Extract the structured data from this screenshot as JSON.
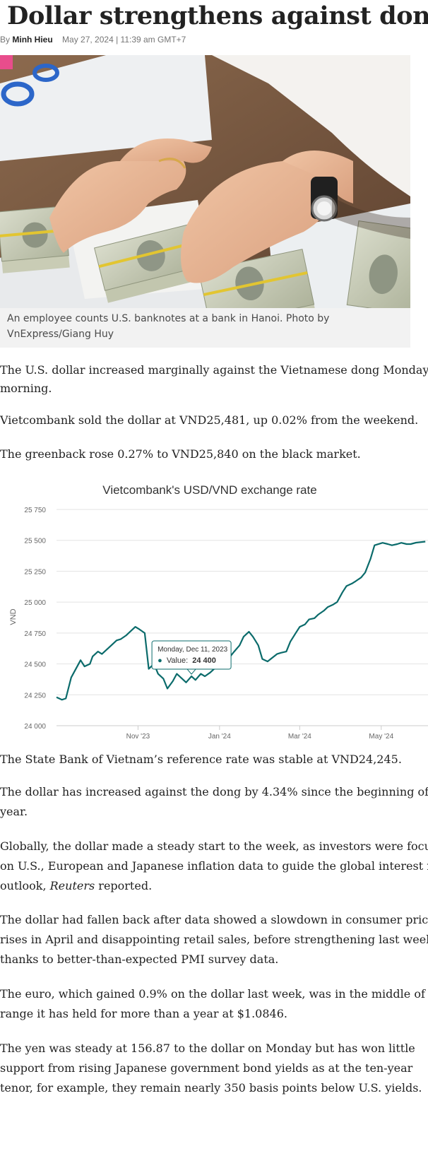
{
  "article": {
    "title": "Dollar strengthens against dong",
    "byline_prefix": "By",
    "author": "Minh Hieu",
    "date": "May 27, 2024 | 11:39 am GMT+7",
    "photo_caption_line1": "An employee counts U.S. banknotes at a bank in Hanoi. Photo by",
    "photo_caption_line2": "VnExpress/Giang Huy",
    "paragraphs": {
      "p1_l1": "The U.S. dollar increased marginally against the Vietnamese dong Monday",
      "p1_l2": "morning.",
      "p2": "Vietcombank sold the dollar at VND25,481, up 0.02% from the weekend.",
      "p3": "The greenback rose 0.27% to VND25,840 on the black market.",
      "p4": "The State Bank of Vietnam’s reference rate was stable at VND24,245.",
      "p5_l1": "The dollar has increased against the dong by 4.34% since the beginning of the",
      "p5_l2": "year.",
      "p6_l1": "Globally, the dollar made a steady start to the week, as investors were focused",
      "p6_l2": "on U.S., European and Japanese inflation data to guide the global interest rate",
      "p6_l3_a": "outlook, ",
      "p6_l3_em": "Reuters",
      "p6_l3_b": " reported.",
      "p7_l1": "The dollar had fallen back after data showed a slowdown in consumer price",
      "p7_l2": "rises in April and disappointing retail sales, before strengthening last week",
      "p7_l3": "thanks to better-than-expected PMI survey data.",
      "p8_l1": "The euro, which gained 0.9% on the dollar last week, was in the middle of a",
      "p8_l2": "range it has held for more than a year at $1.0846.",
      "p9_l1": "The yen was steady at 156.87 to the dollar on Monday but has won little",
      "p9_l2": "support from rising Japanese government bond yields as at the ten-year",
      "p9_l3": "tenor, for example, they remain nearly 350 basis points below U.S. yields."
    }
  },
  "colors": {
    "line": "#0b6b6b",
    "grid": "#e3e3e3",
    "axis_text": "#666666",
    "title_text": "#333333"
  },
  "chart_data": {
    "type": "line",
    "title": "Vietcombank's USD/VND exchange rate",
    "ylabel": "VND",
    "xlabel": "",
    "ylim": [
      24000,
      25750
    ],
    "yticks": [
      24000,
      24250,
      24500,
      24750,
      25000,
      25250,
      25500,
      25750
    ],
    "ytick_labels": [
      "24 000",
      "24 250",
      "24 500",
      "24 750",
      "25 000",
      "25 250",
      "25 500",
      "25 750"
    ],
    "xlim": [
      "2023-09-01",
      "2024-06-05"
    ],
    "xticks": [
      "2023-11-01",
      "2024-01-01",
      "2024-03-01",
      "2024-05-01"
    ],
    "xtick_labels": [
      "Nov '23",
      "Jan '24",
      "Mar '24",
      "May '24"
    ],
    "grid": true,
    "legend": "none",
    "tooltip": {
      "date_label": "Monday, Dec 11, 2023",
      "value_prefix": "Value:",
      "value_label": "24 400",
      "x": "2023-12-11",
      "y": 24400
    },
    "series": [
      {
        "x": [
          "2023-09-01",
          "2023-09-05",
          "2023-09-08",
          "2023-09-12",
          "2023-09-15",
          "2023-09-19",
          "2023-09-22",
          "2023-09-26",
          "2023-09-28",
          "2023-10-02",
          "2023-10-05",
          "2023-10-09",
          "2023-10-12",
          "2023-10-16",
          "2023-10-19",
          "2023-10-23",
          "2023-10-26",
          "2023-10-30",
          "2023-11-02",
          "2023-11-06",
          "2023-11-09",
          "2023-11-13",
          "2023-11-16",
          "2023-11-20",
          "2023-11-23",
          "2023-11-27",
          "2023-11-30",
          "2023-12-04",
          "2023-12-07",
          "2023-12-11",
          "2023-12-14",
          "2023-12-18",
          "2023-12-21",
          "2023-12-25",
          "2023-12-28",
          "2024-01-02",
          "2024-01-05",
          "2024-01-09",
          "2024-01-12",
          "2024-01-16",
          "2024-01-19",
          "2024-01-23",
          "2024-01-26",
          "2024-01-30",
          "2024-02-02",
          "2024-02-06",
          "2024-02-13",
          "2024-02-16",
          "2024-02-20",
          "2024-02-23",
          "2024-02-27",
          "2024-03-01",
          "2024-03-05",
          "2024-03-08",
          "2024-03-12",
          "2024-03-15",
          "2024-03-19",
          "2024-03-22",
          "2024-03-26",
          "2024-03-29",
          "2024-04-02",
          "2024-04-05",
          "2024-04-09",
          "2024-04-12",
          "2024-04-16",
          "2024-04-19",
          "2024-04-23",
          "2024-04-26",
          "2024-05-02",
          "2024-05-06",
          "2024-05-09",
          "2024-05-13",
          "2024-05-16",
          "2024-05-20",
          "2024-05-23",
          "2024-05-27",
          "2024-06-03"
        ],
        "y": [
          24230,
          24210,
          24220,
          24390,
          24450,
          24530,
          24480,
          24500,
          24560,
          24600,
          24580,
          24620,
          24650,
          24690,
          24700,
          24730,
          24760,
          24800,
          24780,
          24750,
          24460,
          24500,
          24420,
          24380,
          24300,
          24360,
          24420,
          24380,
          24350,
          24400,
          24370,
          24420,
          24400,
          24430,
          24460,
          24470,
          24520,
          24560,
          24600,
          24650,
          24720,
          24760,
          24720,
          24650,
          24540,
          24520,
          24580,
          24590,
          24600,
          24680,
          24750,
          24800,
          24820,
          24860,
          24870,
          24900,
          24930,
          24960,
          24980,
          25000,
          25080,
          25130,
          25150,
          25170,
          25200,
          25240,
          25350,
          25460,
          25480,
          25470,
          25460,
          25470,
          25480,
          25470,
          25470,
          25481,
          25490
        ]
      }
    ]
  }
}
